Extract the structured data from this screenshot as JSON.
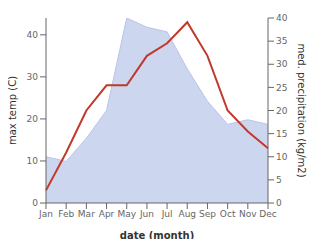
{
  "chart_data": {
    "type": "combo",
    "xlabel": "date (month)",
    "ylabel": "max temp (C)",
    "y2label": "med. precipitation (kg/m2)",
    "categories": [
      "Jan",
      "Feb",
      "Mar",
      "Apr",
      "May",
      "Jun",
      "Jul",
      "Aug",
      "Sep",
      "Oct",
      "Nov",
      "Dec"
    ],
    "series": [
      {
        "type": "area",
        "color": "#b8c4e8",
        "axis": "y2",
        "values": [
          10,
          9,
          14,
          20,
          40,
          38,
          37,
          29,
          22,
          17,
          18,
          17
        ]
      },
      {
        "type": "line",
        "color": "#c0392b",
        "values": [
          3,
          12,
          22,
          28,
          28,
          35,
          38,
          43,
          35,
          22,
          17,
          13
        ]
      }
    ],
    "ylim": [
      0,
      44
    ],
    "yticks": [
      0,
      10,
      20,
      30,
      40
    ],
    "y2lim": [
      0,
      40
    ],
    "y2ticks": [
      0,
      5,
      10,
      15,
      20,
      25,
      30,
      35,
      40
    ],
    "grid": false
  }
}
